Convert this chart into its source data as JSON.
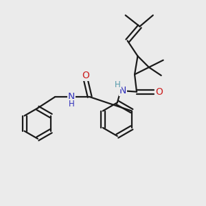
{
  "bg_color": "#ebebeb",
  "line_color": "#1a1a1a",
  "N_color": "#3030bb",
  "O_color": "#cc2020",
  "bond_lw": 1.6,
  "font_size": 9.5,
  "fig_size": [
    3.0,
    3.0
  ],
  "dpi": 100,
  "xlim": [
    0,
    10
  ],
  "ylim": [
    0,
    10
  ]
}
